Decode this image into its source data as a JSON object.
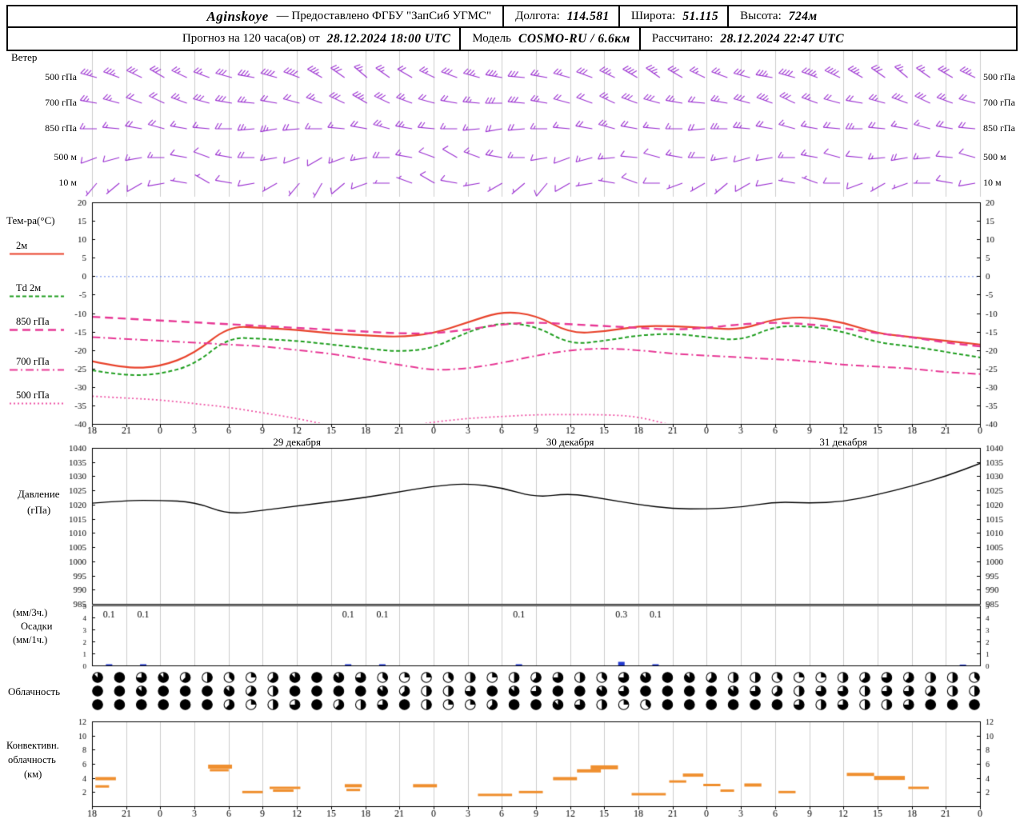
{
  "header": {
    "station": "Aginskoye",
    "provider": "— Предоставлено ФГБУ \"ЗапСиб УГМС\"",
    "lon_label": "Долгота:",
    "lon": "114.581",
    "lat_label": "Широта:",
    "lat": "51.115",
    "alt_label": "Высота:",
    "alt": "724м",
    "line2_prefix": "Прогноз на 120 часа(ов) от",
    "run_time": "28.12.2024 18:00 UTC",
    "model_label": "Модель",
    "model_value": "COSMO-RU / 6.6км",
    "calc_label": "Рассчитано:",
    "calc_time": "28.12.2024 22:47 UTC"
  },
  "colors": {
    "grid": "#cccccc",
    "border": "#000000",
    "barb": "#9a2fd0",
    "zero_line": "#6688ee",
    "precip_bar": "#2239cf",
    "conv_bar": "#ef8f2f",
    "temp_2m": "#e8432c",
    "td_2m": "#1f9e1f",
    "t850": "#e73895",
    "t700": "#e73895",
    "t500": "#ee55a5",
    "pressure": "#000000"
  },
  "panel_titles": {
    "wind": "Ветер",
    "temp": "Тем-ра(°C)",
    "pressure1": "Давление",
    "pressure2": "(гПа)",
    "precip1": "(мм/3ч.)",
    "precip2": "Осадки",
    "precip3": "(мм/1ч.)",
    "clouds": "Облачность",
    "conv1": "Конвективн.",
    "conv2": "облачность",
    "conv3": "(км)"
  },
  "axes": {
    "hour_labels": [
      "18",
      "21",
      "0",
      "3",
      "6",
      "9",
      "12",
      "15",
      "18",
      "21",
      "0",
      "3",
      "6",
      "9",
      "12",
      "15",
      "18",
      "21",
      "0",
      "3",
      "6",
      "9",
      "12",
      "15",
      "18",
      "21",
      "0"
    ],
    "date_labels": [
      {
        "label": "29 декабря",
        "tick": 6
      },
      {
        "label": "30 декабря",
        "tick": 14
      },
      {
        "label": "31 декабря",
        "tick": 22
      }
    ]
  },
  "chart_data": [
    {
      "id": "wind",
      "type": "wind-barbs",
      "title": "Ветер",
      "levels": [
        "500 гПа",
        "700 гПа",
        "850 гПа",
        "500 м",
        "10 м"
      ],
      "rows": [
        {
          "level": "500 гПа",
          "dirs": [
            285,
            290,
            295,
            300,
            295,
            290,
            285,
            280,
            285,
            290,
            300,
            305,
            310,
            305,
            300,
            295,
            290,
            285,
            280,
            275,
            280,
            285,
            290,
            295,
            300,
            305,
            300,
            295,
            290,
            285,
            280,
            285,
            290,
            295,
            300,
            305,
            310,
            305,
            300,
            295
          ],
          "speeds_kt": [
            35,
            35,
            30,
            30,
            25,
            25,
            30,
            35,
            40,
            40,
            35,
            30,
            25,
            25,
            20,
            25,
            30,
            35,
            35,
            30,
            25,
            25,
            30,
            35,
            40,
            35,
            30,
            25,
            25,
            30,
            35,
            40,
            45,
            40,
            35,
            30,
            25,
            25,
            30,
            35
          ]
        },
        {
          "level": "700 гПа",
          "dirs": [
            280,
            285,
            290,
            295,
            290,
            285,
            280,
            275,
            280,
            285,
            290,
            295,
            300,
            295,
            290,
            285,
            280,
            275,
            270,
            275,
            280,
            285,
            290,
            295,
            290,
            285,
            280,
            275,
            280,
            285,
            290,
            295,
            290,
            285,
            280,
            285,
            290,
            295,
            290,
            285
          ],
          "speeds_kt": [
            25,
            25,
            20,
            20,
            25,
            30,
            30,
            25,
            20,
            20,
            25,
            30,
            35,
            30,
            25,
            20,
            20,
            25,
            30,
            30,
            25,
            20,
            20,
            25,
            30,
            30,
            25,
            20,
            25,
            30,
            35,
            30,
            25,
            20,
            20,
            25,
            30,
            30,
            25,
            20
          ]
        },
        {
          "level": "850 гПа",
          "dirs": [
            270,
            275,
            280,
            285,
            280,
            275,
            270,
            265,
            260,
            265,
            270,
            275,
            280,
            285,
            280,
            275,
            270,
            265,
            260,
            265,
            270,
            275,
            280,
            285,
            280,
            275,
            270,
            265,
            270,
            275,
            280,
            285,
            280,
            275,
            270,
            275,
            280,
            285,
            280,
            275
          ],
          "speeds_kt": [
            15,
            15,
            20,
            20,
            15,
            15,
            20,
            25,
            25,
            20,
            15,
            15,
            20,
            25,
            25,
            20,
            15,
            15,
            20,
            20,
            15,
            15,
            20,
            25,
            20,
            15,
            15,
            20,
            25,
            25,
            20,
            15,
            15,
            20,
            25,
            20,
            15,
            15,
            20,
            20
          ]
        },
        {
          "level": "500 м",
          "dirs": [
            250,
            255,
            260,
            270,
            280,
            290,
            280,
            270,
            260,
            250,
            240,
            250,
            260,
            270,
            280,
            290,
            300,
            290,
            280,
            270,
            260,
            250,
            255,
            265,
            275,
            285,
            280,
            270,
            260,
            255,
            260,
            270,
            280,
            285,
            275,
            265,
            260,
            265,
            275,
            285
          ],
          "speeds_kt": [
            10,
            10,
            15,
            15,
            10,
            10,
            15,
            20,
            15,
            10,
            10,
            15,
            15,
            20,
            15,
            10,
            10,
            15,
            20,
            15,
            10,
            10,
            15,
            15,
            10,
            10,
            15,
            20,
            15,
            10,
            10,
            15,
            15,
            10,
            10,
            15,
            20,
            15,
            10,
            10
          ]
        },
        {
          "level": "10 м",
          "dirs": [
            220,
            230,
            240,
            260,
            280,
            300,
            280,
            260,
            240,
            220,
            210,
            230,
            250,
            270,
            290,
            300,
            280,
            260,
            240,
            230,
            220,
            240,
            260,
            280,
            290,
            270,
            250,
            240,
            230,
            240,
            260,
            280,
            290,
            270,
            250,
            240,
            250,
            270,
            280,
            260
          ],
          "speeds_kt": [
            5,
            5,
            10,
            10,
            5,
            5,
            10,
            10,
            5,
            5,
            5,
            10,
            10,
            5,
            5,
            10,
            10,
            5,
            5,
            5,
            10,
            10,
            5,
            5,
            10,
            10,
            5,
            5,
            5,
            10,
            10,
            5,
            5,
            10,
            10,
            5,
            5,
            5,
            10,
            10
          ]
        }
      ]
    },
    {
      "id": "temperature",
      "type": "line",
      "title": "Тем-ра(°C)",
      "ylim": [
        -40,
        20
      ],
      "yticks": [
        20,
        15,
        10,
        5,
        0,
        -5,
        -10,
        -15,
        -20,
        -25,
        -30,
        -35,
        -40
      ],
      "series": [
        {
          "name": "2м",
          "color": "#e8432c",
          "style": "solid",
          "values": [
            -23,
            -25,
            -24.5,
            -21,
            -13.5,
            -14,
            -14.5,
            -15.5,
            -16,
            -16.5,
            -15.5,
            -12.5,
            -9.5,
            -10.5,
            -15.5,
            -15,
            -13.5,
            -13.5,
            -14,
            -14.5,
            -11.5,
            -11,
            -12.5,
            -15.5,
            -16.5,
            -17.5,
            -18.5
          ]
        },
        {
          "name": "Td 2м",
          "color": "#1f9e1f",
          "style": "dashed",
          "values": [
            -25.5,
            -27,
            -26.5,
            -24,
            -16.5,
            -17,
            -17.5,
            -18.5,
            -19.5,
            -20.5,
            -19.5,
            -15,
            -12.5,
            -13.5,
            -18.5,
            -17.5,
            -16,
            -15.5,
            -16.5,
            -17.5,
            -13.5,
            -13.5,
            -15,
            -18,
            -19,
            -20.5,
            -22
          ]
        },
        {
          "name": "850 гПа",
          "color": "#e73895",
          "style": "longdash",
          "values": [
            -11,
            -11.5,
            -12,
            -12.5,
            -13,
            -13.5,
            -14,
            -14.5,
            -15,
            -15.5,
            -15.5,
            -14.5,
            -13,
            -12.5,
            -13,
            -13.5,
            -14,
            -14.5,
            -14,
            -13,
            -12.5,
            -13,
            -14,
            -15.5,
            -16.5,
            -18,
            -19
          ]
        },
        {
          "name": "700 гПа",
          "color": "#e73895",
          "style": "dashdot",
          "values": [
            -16.5,
            -17,
            -17.5,
            -18,
            -18.5,
            -19,
            -20,
            -21,
            -22.5,
            -24,
            -25.5,
            -25,
            -23.5,
            -21.5,
            -20,
            -19.5,
            -20,
            -21,
            -21.5,
            -22,
            -22.5,
            -23,
            -24,
            -24.5,
            -25,
            -26,
            -26.5
          ]
        },
        {
          "name": "500 гПа",
          "color": "#ee55a5",
          "style": "dotted",
          "values": [
            -32.5,
            -33,
            -33.5,
            -34.5,
            -35.5,
            -37,
            -38.5,
            -40.5,
            -41.5,
            -41,
            -39.5,
            -38.5,
            -38,
            -37.5,
            -37.5,
            -37.5,
            -38,
            -40.5,
            -41.5,
            -42,
            -42.5,
            -43,
            -43,
            -43.5,
            -44,
            -44,
            -44.5
          ]
        }
      ]
    },
    {
      "id": "pressure",
      "type": "line",
      "title": "Давление (гПа)",
      "ylim": [
        985,
        1040
      ],
      "yticks": [
        1040,
        1035,
        1030,
        1025,
        1020,
        1015,
        1010,
        1005,
        1000,
        995,
        990,
        985
      ],
      "series": [
        {
          "name": "Давление",
          "color": "#000000",
          "style": "solid",
          "values": [
            1020.5,
            1021.5,
            1021.5,
            1021,
            1016.5,
            1018,
            1019.5,
            1021,
            1022.5,
            1024.5,
            1026.5,
            1027.5,
            1026,
            1022.5,
            1024,
            1022,
            1020,
            1018.5,
            1018.5,
            1019,
            1021,
            1020.5,
            1021,
            1023.5,
            1026.5,
            1030,
            1034.5
          ]
        }
      ]
    },
    {
      "id": "precip",
      "type": "bar",
      "title": "Осадки (мм/3ч., мм/1ч.)",
      "ylim": [
        0,
        5
      ],
      "yticks": [
        5,
        4,
        3,
        2,
        1,
        0
      ],
      "labels": [
        {
          "tick": 0,
          "text": "0.1"
        },
        {
          "tick": 1,
          "text": "0.1"
        },
        {
          "tick": 7,
          "text": "0.1"
        },
        {
          "tick": 8,
          "text": "0.1"
        },
        {
          "tick": 12,
          "text": "0.1"
        },
        {
          "tick": 15,
          "text": "0.3"
        },
        {
          "tick": 16,
          "text": "0.1"
        }
      ],
      "bars": [
        {
          "tick": 0,
          "value": 0.1
        },
        {
          "tick": 1,
          "value": 0.1
        },
        {
          "tick": 7,
          "value": 0.1
        },
        {
          "tick": 8,
          "value": 0.1
        },
        {
          "tick": 12,
          "value": 0.1
        },
        {
          "tick": 15,
          "value": 0.3
        },
        {
          "tick": 16,
          "value": 0.1
        },
        {
          "tick": 25,
          "value": 0.07
        }
      ]
    },
    {
      "id": "cloudiness",
      "type": "symbols",
      "title": "Облачность",
      "rows_okta": [
        [
          7,
          8,
          6,
          7,
          5,
          4,
          3,
          2,
          5,
          7,
          8,
          7,
          6,
          3,
          2,
          2,
          3,
          4,
          2,
          4,
          5,
          6,
          4,
          3,
          6,
          7,
          8,
          7,
          5,
          4,
          4,
          3,
          2,
          2,
          4,
          5,
          6,
          5,
          4,
          4,
          3
        ],
        [
          8,
          8,
          7,
          8,
          8,
          8,
          7,
          5,
          4,
          8,
          8,
          8,
          8,
          7,
          5,
          4,
          4,
          6,
          8,
          7,
          6,
          8,
          8,
          7,
          6,
          8,
          8,
          8,
          8,
          7,
          6,
          5,
          4,
          6,
          6,
          4,
          6,
          6,
          5,
          4,
          4
        ],
        [
          8,
          8,
          8,
          8,
          8,
          8,
          5,
          2,
          4,
          6,
          8,
          5,
          4,
          6,
          8,
          4,
          2,
          2,
          5,
          8,
          8,
          7,
          6,
          4,
          2,
          3,
          8,
          8,
          8,
          8,
          8,
          8,
          6,
          4,
          6,
          4,
          4,
          6,
          8,
          8,
          8
        ]
      ]
    },
    {
      "id": "convective",
      "type": "segments",
      "title": "Конвективн. облачность (км)",
      "ylim": [
        0,
        12
      ],
      "yticks": [
        12,
        10,
        8,
        6,
        4,
        2
      ],
      "segments": [
        [
          0.1,
          0.7,
          3.9,
          4
        ],
        [
          0.1,
          0.5,
          2.8,
          3
        ],
        [
          3.4,
          4.1,
          5.6,
          5
        ],
        [
          3.45,
          4.0,
          5.1,
          3
        ],
        [
          4.4,
          5.0,
          2.0,
          3
        ],
        [
          5.2,
          6.1,
          2.6,
          3
        ],
        [
          5.3,
          5.9,
          2.2,
          3
        ],
        [
          7.4,
          7.9,
          2.9,
          4
        ],
        [
          7.45,
          7.85,
          2.3,
          3
        ],
        [
          9.4,
          10.1,
          2.9,
          4
        ],
        [
          11.3,
          12.3,
          1.6,
          3
        ],
        [
          12.5,
          13.2,
          2.0,
          3
        ],
        [
          13.5,
          14.2,
          3.9,
          4
        ],
        [
          14.2,
          14.9,
          5.0,
          4
        ],
        [
          14.6,
          15.4,
          5.5,
          5
        ],
        [
          15.8,
          16.8,
          1.7,
          3
        ],
        [
          16.9,
          17.4,
          3.5,
          3
        ],
        [
          17.3,
          17.9,
          4.4,
          4
        ],
        [
          17.9,
          18.4,
          3.0,
          3
        ],
        [
          18.4,
          18.8,
          2.2,
          3
        ],
        [
          19.1,
          19.6,
          3.0,
          4
        ],
        [
          20.1,
          20.6,
          2.0,
          3
        ],
        [
          22.1,
          22.9,
          4.5,
          4
        ],
        [
          22.9,
          23.8,
          4.0,
          5
        ],
        [
          23.9,
          24.5,
          2.6,
          3
        ]
      ]
    }
  ]
}
